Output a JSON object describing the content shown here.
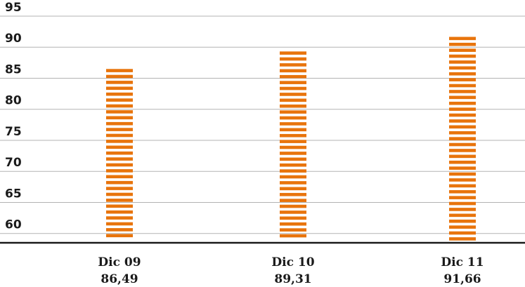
{
  "chart_data": {
    "type": "bar",
    "categories": [
      "Dic 09",
      "Dic 10",
      "Dic 11"
    ],
    "values": [
      86.49,
      89.31,
      91.66
    ],
    "value_labels": [
      "86,49",
      "89,31",
      "91,66"
    ],
    "title": "",
    "xlabel": "",
    "ylabel": "",
    "ylim": [
      58.5,
      95
    ],
    "yticks": [
      60,
      65,
      70,
      75,
      80,
      85,
      90,
      95
    ],
    "grid": true,
    "legend": "none",
    "bar_style": "horizontal-striped",
    "colors": {
      "bar": "#e8740c",
      "grid": "#b3b3b3",
      "axis": "#1a1a1a",
      "text": "#1a1a1a"
    }
  }
}
